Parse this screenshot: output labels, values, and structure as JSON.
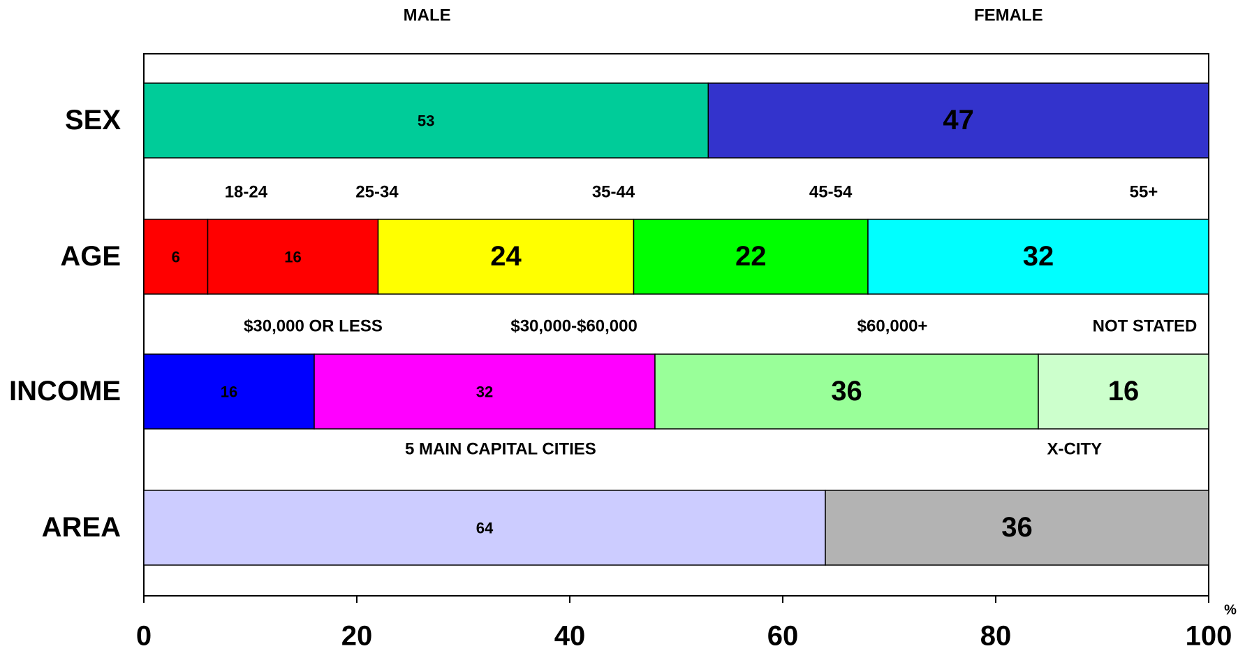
{
  "chart_data": {
    "type": "stacked-bar-horizontal",
    "rows": [
      {
        "name": "SEX",
        "labels": [
          "MALE",
          "FEMALE"
        ],
        "segments": [
          {
            "value": 53,
            "color": "#00cc99",
            "label_color": "#ffffff"
          },
          {
            "value": 47,
            "color": "#3333cc",
            "label_color": "#000000"
          }
        ]
      },
      {
        "name": "AGE",
        "labels": [
          "18-24",
          "25-34",
          "35-44",
          "45-54",
          "55+"
        ],
        "segments": [
          {
            "value": 6,
            "color": "#ff0000",
            "label_color": "#ffffff"
          },
          {
            "value": 16,
            "color": "#ff0000",
            "label_color": "#ffffff"
          },
          {
            "value": 24,
            "color": "#ffff00",
            "label_color": "#000000"
          },
          {
            "value": 22,
            "color": "#00ff00",
            "label_color": "#000000"
          },
          {
            "value": 32,
            "color": "#00ffff",
            "label_color": "#000000"
          }
        ]
      },
      {
        "name": "INCOME",
        "labels": [
          "$30,000 OR LESS",
          "$30,000-$60,000",
          "$60,000+",
          "NOT STATED"
        ],
        "segments": [
          {
            "value": 16,
            "color": "#0000ff",
            "label_color": "#ffffff"
          },
          {
            "value": 32,
            "color": "#ff00ff",
            "label_color": "#ffffff"
          },
          {
            "value": 36,
            "color": "#99ff99",
            "label_color": "#000000"
          },
          {
            "value": 16,
            "color": "#ccffcc",
            "label_color": "#000000"
          }
        ]
      },
      {
        "name": "AREA",
        "labels": [
          "5 MAIN CAPITAL CITIES",
          "X-CITY"
        ],
        "segments": [
          {
            "value": 64,
            "color": "#ccccff",
            "label_color": "#ffffff"
          },
          {
            "value": 36,
            "color": "#b3b3b3",
            "label_color": "#000000"
          }
        ]
      }
    ],
    "xlim": [
      0,
      100
    ],
    "xticks": [
      0,
      20,
      40,
      60,
      80,
      100
    ],
    "x_unit": "%"
  }
}
